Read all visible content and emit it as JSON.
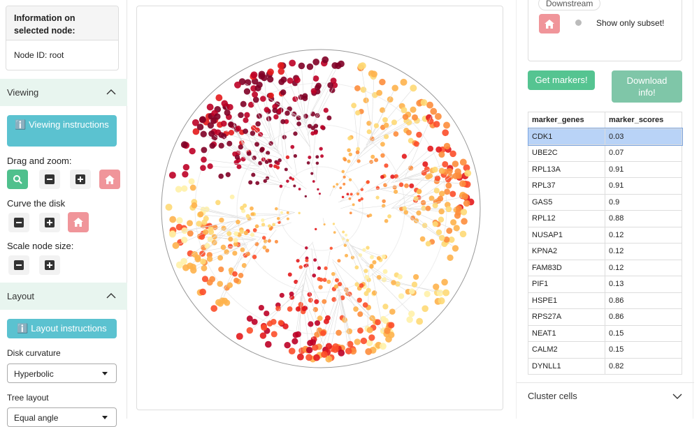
{
  "info": {
    "title": "Information on selected node:",
    "node": "Node ID: root"
  },
  "viewing": {
    "header": "Viewing",
    "instructions": "Viewing instructions",
    "drag": "Drag and zoom:",
    "curve": "Curve the disk",
    "scale": "Scale node size:"
  },
  "layout": {
    "header": "Layout",
    "instructions": "Layout instructions",
    "curvature_label": "Disk curvature",
    "curvature": "Hyperbolic",
    "tree_label": "Tree layout",
    "tree": "Equal angle"
  },
  "subset": {
    "direction": "Downstream",
    "toggle": "Show only subset!"
  },
  "buttons": {
    "markers": "Get markers!",
    "download": "Download info!"
  },
  "table": {
    "columns": [
      "marker_genes",
      "marker_scores"
    ],
    "rows": [
      [
        "CDK1",
        0.03
      ],
      [
        "UBE2C",
        0.07
      ],
      [
        "RPL13A",
        0.91
      ],
      [
        "RPL37",
        0.91
      ],
      [
        "GAS5",
        0.9
      ],
      [
        "RPL12",
        0.88
      ],
      [
        "NUSAP1",
        0.12
      ],
      [
        "KPNA2",
        0.12
      ],
      [
        "FAM83D",
        0.12
      ],
      [
        "PIF1",
        0.13
      ],
      [
        "HSPE1",
        0.86
      ],
      [
        "RPS27A",
        0.86
      ],
      [
        "NEAT1",
        0.15
      ],
      [
        "CALM2",
        0.15
      ],
      [
        "DYNLL1",
        0.82
      ]
    ]
  },
  "cluster": "Cluster cells"
}
